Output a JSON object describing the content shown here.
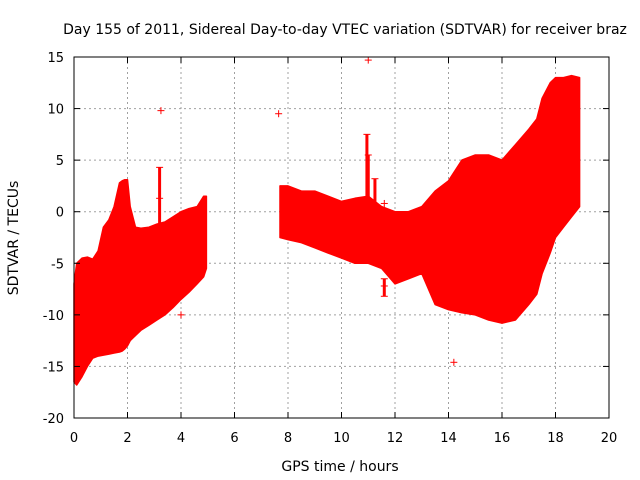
{
  "chart_data": {
    "type": "scatter",
    "title": "Day 155 of 2011, Sidereal Day-to-day VTEC variation (SDTVAR) for receiver braz",
    "xlabel": "GPS time / hours",
    "ylabel": "SDTVAR / TECUs",
    "xlim": [
      0,
      20
    ],
    "ylim": [
      -20,
      15
    ],
    "x_ticks": [
      0,
      2,
      4,
      6,
      8,
      10,
      12,
      14,
      16,
      18,
      20
    ],
    "y_ticks": [
      -20,
      -15,
      -10,
      -5,
      0,
      5,
      10,
      15
    ],
    "grid": true,
    "series_color": "#ff0000",
    "bands": [
      {
        "name": "segment-1",
        "x": [
          0.0,
          0.1,
          0.3,
          0.5,
          0.7,
          0.9,
          1.1,
          1.3,
          1.5,
          1.7,
          1.8,
          1.9,
          2.0,
          2.1,
          2.3,
          2.5,
          2.8,
          3.1,
          3.4,
          3.7,
          4.0,
          4.3,
          4.6,
          4.85,
          4.95
        ],
        "upper": [
          -7.0,
          -5.0,
          -4.5,
          -4.4,
          -4.6,
          -3.8,
          -1.5,
          -0.8,
          0.5,
          2.8,
          3.0,
          3.1,
          3.1,
          0.5,
          -1.5,
          -1.6,
          -1.5,
          -1.2,
          -1.0,
          -0.5,
          0.0,
          0.3,
          0.5,
          1.5,
          1.5
        ],
        "lower": [
          -16.5,
          -16.8,
          -16.0,
          -15.0,
          -14.2,
          -14.0,
          -13.9,
          -13.8,
          -13.7,
          -13.6,
          -13.5,
          -13.3,
          -13.0,
          -12.5,
          -12.0,
          -11.5,
          -11.0,
          -10.5,
          -10.0,
          -9.3,
          -8.5,
          -7.8,
          -7.0,
          -6.3,
          -5.5
        ]
      },
      {
        "name": "segment-2",
        "x": [
          7.7,
          8.0,
          8.5,
          9.0,
          9.5,
          10.0,
          10.5,
          11.0,
          11.5,
          12.0,
          12.5,
          13.0,
          13.5,
          14.0,
          14.5,
          15.0,
          15.5,
          16.0,
          16.5,
          17.0,
          17.3,
          17.5,
          17.8,
          18.0,
          18.3,
          18.6,
          18.9
        ],
        "upper": [
          2.5,
          2.5,
          2.0,
          2.0,
          1.5,
          1.0,
          1.3,
          1.5,
          0.5,
          0.0,
          0.0,
          0.5,
          2.0,
          3.0,
          5.0,
          5.5,
          5.5,
          5.0,
          6.5,
          8.0,
          9.0,
          11.0,
          12.5,
          13.0,
          13.0,
          13.2,
          13.0
        ],
        "lower": [
          -2.5,
          -2.7,
          -3.0,
          -3.5,
          -4.0,
          -4.5,
          -5.0,
          -5.0,
          -5.5,
          -7.0,
          -6.5,
          -6.0,
          -9.0,
          -9.5,
          -9.8,
          -10.0,
          -10.5,
          -10.8,
          -10.5,
          -9.0,
          -8.0,
          -6.0,
          -4.0,
          -2.5,
          -1.5,
          -0.5,
          0.5
        ]
      }
    ],
    "spikes": [
      {
        "x": 3.2,
        "y_low": -1.5,
        "y_high": 4.3
      },
      {
        "x": 10.95,
        "y_low": 0.0,
        "y_high": 7.5
      },
      {
        "x": 11.0,
        "y_low": -1.0,
        "y_high": 5.5
      },
      {
        "x": 11.25,
        "y_low": -2.0,
        "y_high": 3.2
      },
      {
        "x": 11.6,
        "y_low": -8.2,
        "y_high": -6.5
      },
      {
        "x": 18.3,
        "y_low": 0.0,
        "y_high": 12.0
      }
    ],
    "outliers": [
      {
        "x": 3.25,
        "y": 9.8
      },
      {
        "x": 7.65,
        "y": 9.5
      },
      {
        "x": 11.0,
        "y": 14.7
      },
      {
        "x": 11.6,
        "y": 0.8
      },
      {
        "x": 14.2,
        "y": -14.6
      },
      {
        "x": 4.0,
        "y": -10.0
      },
      {
        "x": 3.2,
        "y": 1.3
      },
      {
        "x": 11.6,
        "y": -7.2
      }
    ]
  }
}
